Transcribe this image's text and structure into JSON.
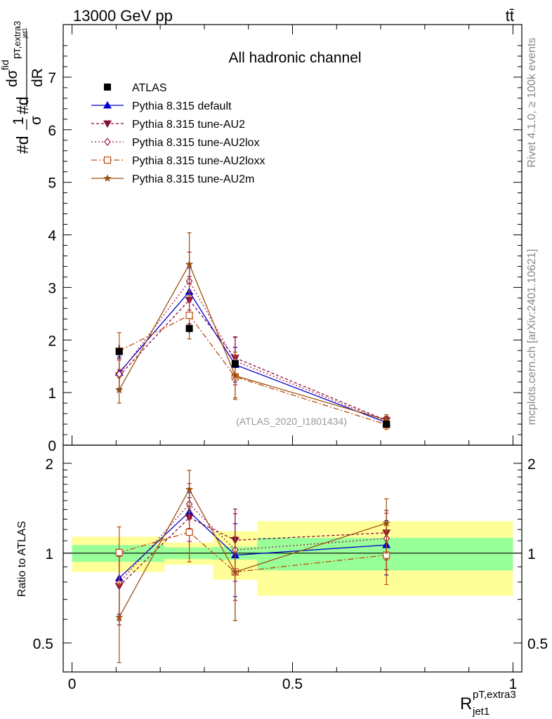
{
  "header": {
    "energy_label": "13000 GeV pp",
    "process_label": "tt̄"
  },
  "side_labels": {
    "rivet": "Rivet 4.1.0, ≥ 100k events",
    "mcplots": "mcplots.cern.ch [arXiv:2401.10621]"
  },
  "chart_data": {
    "type": "line",
    "title": "All hadronic channel",
    "analysis_id": "(ATLAS_2020_I1801434)",
    "ylabel": {
      "parts": [
        "#d",
        "1",
        "σ",
        "#d",
        "dσ",
        "fid",
        "p",
        "T,extra3",
        "jet1",
        "dR"
      ]
    },
    "xlabel": {
      "base": "R",
      "superscript": "pT,extra3",
      "subscript": "jet1"
    },
    "xlim": [
      -0.02,
      1.02
    ],
    "ylim": [
      0,
      8
    ],
    "x_ticks": [
      0,
      0.5,
      1
    ],
    "x_tick_labels": [
      "0",
      "0.5",
      "1"
    ],
    "y_ticks": [
      0,
      1,
      2,
      3,
      4,
      5,
      6,
      7
    ],
    "y_tick_labels": [
      "0",
      "1",
      "2",
      "3",
      "4",
      "5",
      "6",
      "7"
    ],
    "x": [
      0.107,
      0.266,
      0.37,
      0.713
    ],
    "bin_edges": [
      [
        0.0,
        0.21
      ],
      [
        0.21,
        0.32
      ],
      [
        0.32,
        0.42
      ],
      [
        0.42,
        1.0
      ]
    ],
    "legend": [
      {
        "label": "ATLAS",
        "color": "#000000",
        "dash": "",
        "marker": "square"
      },
      {
        "label": "Pythia 8.315 default",
        "color": "#0000cc",
        "dash": "",
        "marker": "triangle-up"
      },
      {
        "label": "Pythia 8.315 tune-AU2",
        "color": "#8b0a3c",
        "dash": "4,3",
        "marker": "triangle-down"
      },
      {
        "label": "Pythia 8.315 tune-AU2lox",
        "color": "#a0153e",
        "dash": "2,3",
        "marker": "diamond-open"
      },
      {
        "label": "Pythia 8.315 tune-AU2loxx",
        "color": "#c04a0c",
        "dash": "8,3,2,3",
        "marker": "square-open"
      },
      {
        "label": "Pythia 8.315 tune-AU2m",
        "color": "#9a5010",
        "dash": "",
        "marker": "star"
      }
    ],
    "data": {
      "name": "ATLAS",
      "values": [
        1.78,
        2.22,
        1.55,
        0.4
      ],
      "err": [
        0.13,
        0.09,
        0.08,
        0.03
      ]
    },
    "series": [
      {
        "name": "Pythia 8.315 default",
        "values": [
          1.38,
          2.92,
          1.53,
          0.43
        ],
        "err": [
          0.3,
          0.45,
          0.33,
          0.08
        ]
      },
      {
        "name": "Pythia 8.315 tune-AU2",
        "values": [
          1.32,
          2.76,
          1.66,
          0.47
        ],
        "err": [
          0.3,
          0.45,
          0.4,
          0.08
        ]
      },
      {
        "name": "Pythia 8.315 tune-AU2lox",
        "values": [
          1.35,
          3.12,
          1.6,
          0.45
        ],
        "err": [
          0.3,
          0.55,
          0.45,
          0.09
        ]
      },
      {
        "name": "Pythia 8.315 tune-AU2loxx",
        "values": [
          1.79,
          2.47,
          1.3,
          0.39
        ],
        "err": [
          0.35,
          0.45,
          0.4,
          0.09
        ]
      },
      {
        "name": "Pythia 8.315 tune-AU2m",
        "values": [
          1.05,
          3.44,
          1.32,
          0.48
        ],
        "err": [
          0.25,
          0.6,
          0.45,
          0.1
        ]
      }
    ],
    "ratio": {
      "ylabel": "Ratio to ATLAS",
      "ylim": [
        0.4,
        2.3
      ],
      "y_ticks": [
        0.5,
        1,
        2
      ],
      "y_tick_labels": [
        "0.5",
        "1",
        "2"
      ],
      "band_inner": [
        [
          0.935,
          1.065
        ],
        [
          0.955,
          1.045
        ],
        [
          0.95,
          1.05
        ],
        [
          0.875,
          1.125
        ]
      ],
      "band_outer": [
        [
          0.865,
          1.135
        ],
        [
          0.915,
          1.085
        ],
        [
          0.815,
          1.185
        ],
        [
          0.72,
          1.28
        ]
      ],
      "series": [
        {
          "name": "Pythia 8.315 default",
          "values": [
            0.825,
            1.375,
            0.985,
            1.065
          ],
          "err": [
            0.2,
            0.22,
            0.27,
            0.22
          ]
        },
        {
          "name": "Pythia 8.315 tune-AU2",
          "values": [
            0.775,
            1.315,
            1.105,
            1.17
          ],
          "err": [
            0.2,
            0.22,
            0.3,
            0.22
          ]
        },
        {
          "name": "Pythia 8.315 tune-AU2lox",
          "values": [
            0.795,
            1.46,
            1.025,
            1.12
          ],
          "err": [
            0.2,
            0.25,
            0.33,
            0.24
          ]
        },
        {
          "name": "Pythia 8.315 tune-AU2loxx",
          "values": [
            1.005,
            1.175,
            0.865,
            0.985
          ],
          "err": [
            0.22,
            0.24,
            0.27,
            0.2
          ]
        },
        {
          "name": "Pythia 8.315 tune-AU2m",
          "values": [
            0.61,
            1.635,
            0.865,
            1.26
          ],
          "err": [
            0.18,
            0.26,
            0.27,
            0.26
          ]
        }
      ]
    }
  }
}
